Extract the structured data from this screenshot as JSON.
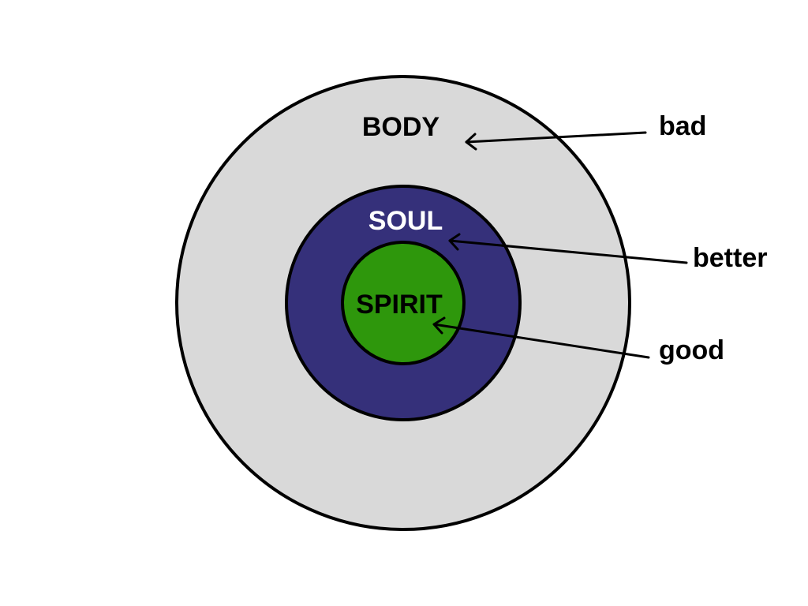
{
  "diagram": {
    "rings": {
      "body": {
        "label": "BODY",
        "fill": "#d9d9d9",
        "text_color": "#000000"
      },
      "soul": {
        "label": "SOUL",
        "fill": "#35307a",
        "text_color": "#ffffff"
      },
      "spirit": {
        "label": "SPIRIT",
        "fill": "#2e970c",
        "text_color": "#000000"
      }
    },
    "callouts": {
      "bad": "bad",
      "better": "better",
      "good": "good"
    }
  }
}
